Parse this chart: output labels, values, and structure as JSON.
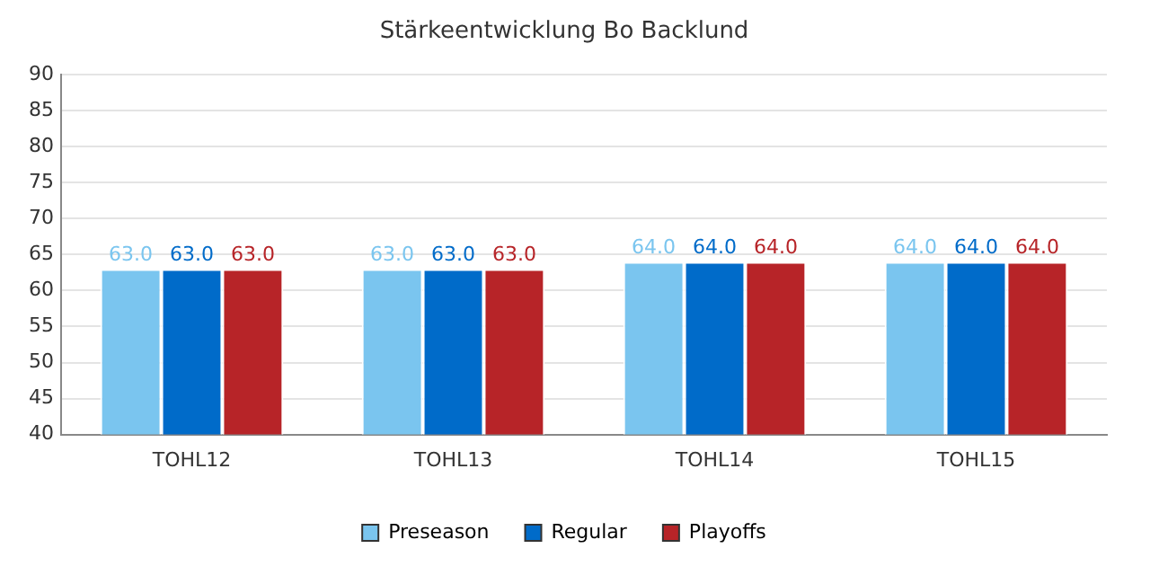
{
  "chart_data": {
    "type": "bar",
    "title": "Stärkeentwicklung Bo Backlund",
    "categories": [
      "TOHL12",
      "TOHL13",
      "TOHL14",
      "TOHL15"
    ],
    "series": [
      {
        "name": "Preseason",
        "color": "#7ac5ef",
        "values": [
          63,
          63,
          64,
          64
        ],
        "value_labels": [
          "63.0",
          "63.0",
          "64.0",
          "64.0"
        ]
      },
      {
        "name": "Regular",
        "color": "#006bc9",
        "values": [
          63,
          63,
          64,
          64
        ],
        "value_labels": [
          "63.0",
          "63.0",
          "64.0",
          "64.0"
        ]
      },
      {
        "name": "Playoffs",
        "color": "#b72428",
        "values": [
          63,
          63,
          64,
          64
        ],
        "value_labels": [
          "63.0",
          "63.0",
          "64.0",
          "64.0"
        ]
      }
    ],
    "ylim": [
      40,
      90
    ],
    "yticks": [
      40,
      45,
      50,
      55,
      60,
      65,
      70,
      75,
      80,
      85,
      90
    ],
    "grid": "y",
    "legend": "bottom"
  }
}
